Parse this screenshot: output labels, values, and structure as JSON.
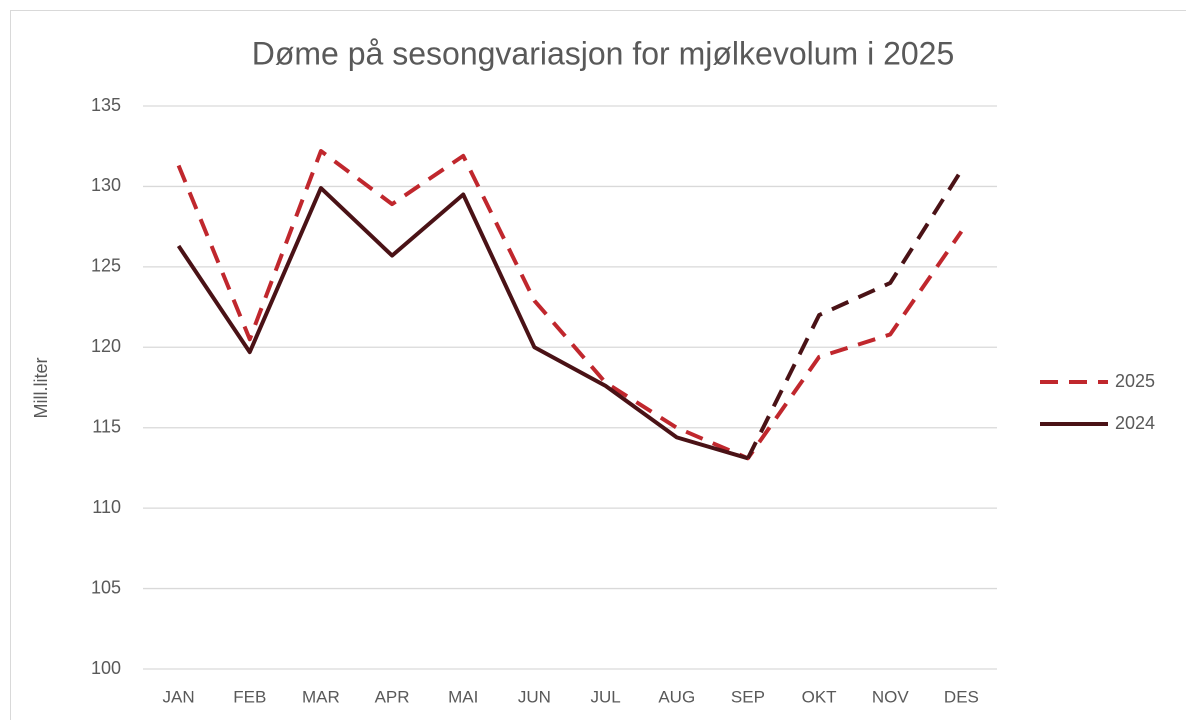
{
  "chart_data": {
    "type": "line",
    "title": "Døme på sesongvariasjon for mjølkevolum i 2025",
    "y_label": "Mill.liter",
    "categories": [
      "JAN",
      "FEB",
      "MAR",
      "APR",
      "MAI",
      "JUN",
      "JUL",
      "AUG",
      "SEP",
      "OKT",
      "NOV",
      "DES"
    ],
    "series": [
      {
        "name": "2025",
        "color": "#c0272d",
        "dashed": true,
        "values": [
          131.3,
          120.5,
          132.2,
          128.9,
          131.9,
          122.9,
          117.8,
          115.0,
          113.1,
          119.4,
          120.8,
          127.2
        ]
      },
      {
        "name": "2024",
        "color": "#4a1216",
        "dashed": false,
        "dashed_from": "SEP",
        "values": [
          126.3,
          119.7,
          129.9,
          125.7,
          129.5,
          120.0,
          117.6,
          114.4,
          113.1,
          122.0,
          124.0,
          131.0
        ]
      }
    ],
    "ylim": [
      100,
      135
    ],
    "yticks": [
      100,
      105,
      110,
      115,
      120,
      125,
      130,
      135
    ],
    "grid": true,
    "legend": "right"
  }
}
